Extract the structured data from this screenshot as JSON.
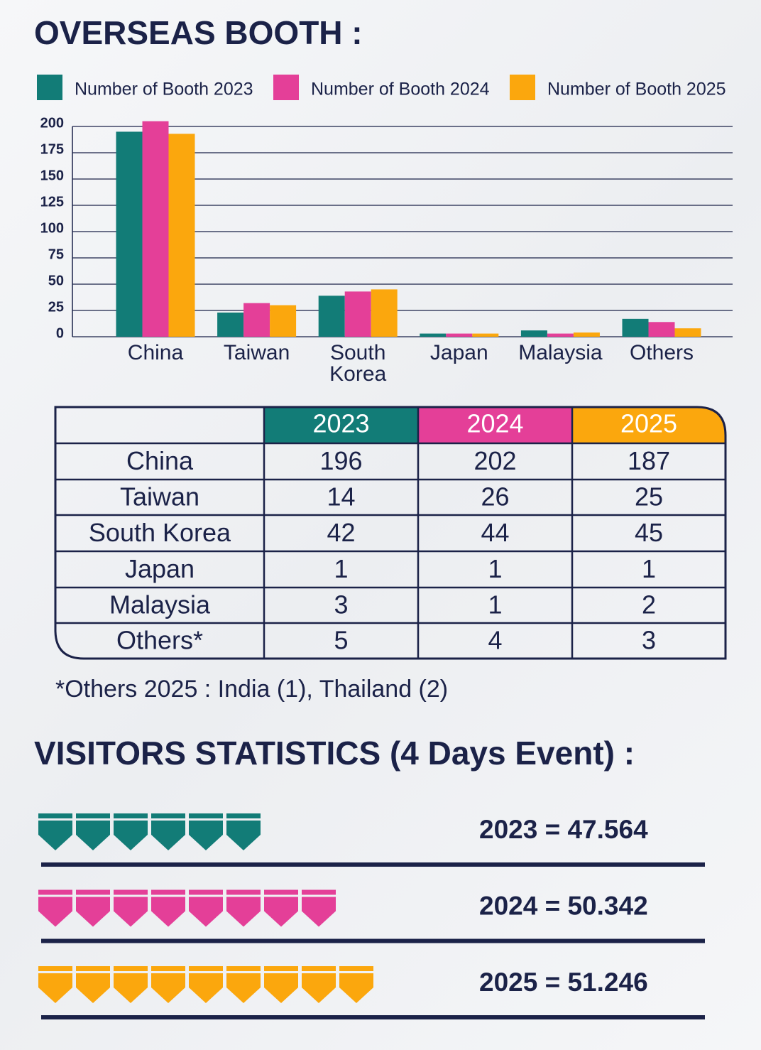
{
  "header": {
    "title": "OVERSEAS BOOTH :"
  },
  "chart_data": {
    "type": "bar",
    "categories": [
      "China",
      "Taiwan",
      "South Korea",
      "Japan",
      "Malaysia",
      "Others"
    ],
    "series": [
      {
        "name": "Number of Booth 2023",
        "color": "#127c77",
        "values": [
          195,
          23,
          39,
          3,
          6,
          17
        ]
      },
      {
        "name": "Number of Booth 2024",
        "color": "#e43f98",
        "values": [
          205,
          32,
          43,
          3,
          3,
          14
        ]
      },
      {
        "name": "Number of Booth 2025",
        "color": "#fba70d",
        "values": [
          193,
          30,
          45,
          3,
          4,
          8
        ]
      }
    ],
    "ylim": [
      0,
      200
    ],
    "yticks": [
      0,
      25,
      50,
      75,
      100,
      125,
      150,
      175,
      200
    ],
    "grid": true,
    "legend": "top"
  },
  "table": {
    "columns": [
      "2023",
      "2024",
      "2025"
    ],
    "rows": [
      [
        "China",
        196,
        202,
        187
      ],
      [
        "Taiwan",
        14,
        26,
        25
      ],
      [
        "South Korea",
        42,
        44,
        45
      ],
      [
        "Japan",
        1,
        1,
        1
      ],
      [
        "Malaysia",
        3,
        1,
        2
      ],
      [
        "Others*",
        5,
        4,
        3
      ]
    ]
  },
  "footnote": "*Others 2025 : India (1), Thailand (2)",
  "visitors": {
    "title": "VISITORS STATISTICS (4 Days Event) :",
    "rows": [
      {
        "label": "2023 = 47.564",
        "icons": 6,
        "color": "#127c77"
      },
      {
        "label": "2024 = 50.342",
        "icons": 8,
        "color": "#e43f98"
      },
      {
        "label": "2025 = 51.246",
        "icons": 9,
        "color": "#fba70d"
      }
    ]
  }
}
